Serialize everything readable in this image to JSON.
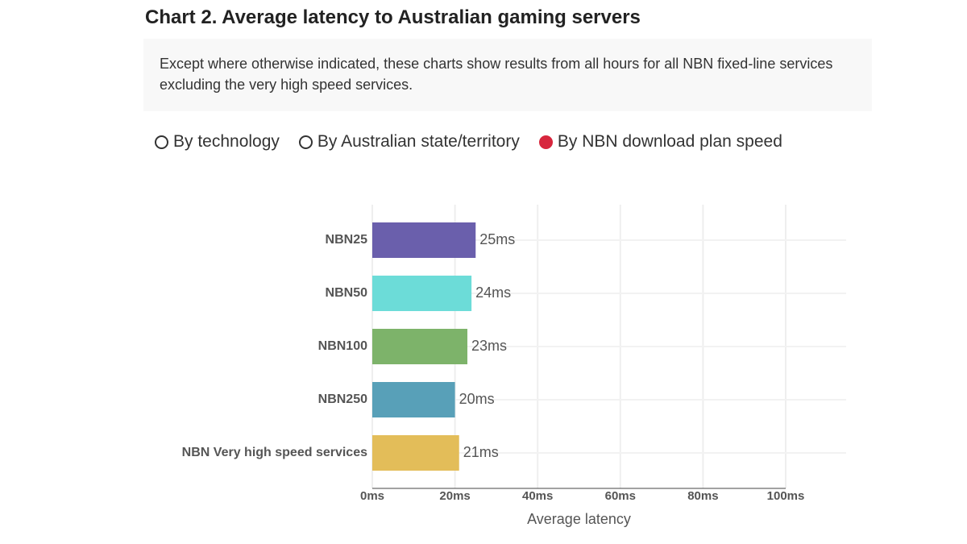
{
  "page": {
    "title": "Chart 2. Average latency to Australian gaming servers",
    "note": "Except where otherwise indicated, these charts show results from all hours for all NBN fixed-line services excluding the very high speed services.",
    "options": [
      "By technology",
      "By Australian state/territory",
      "By NBN download plan speed"
    ],
    "selected": 2
  },
  "chart_data": {
    "type": "bar",
    "orientation": "horizontal",
    "categories": [
      "NBN25",
      "NBN50",
      "NBN100",
      "NBN250",
      "NBN Very high speed services"
    ],
    "values": [
      25,
      24,
      23,
      20,
      21
    ],
    "value_labels": [
      "25ms",
      "24ms",
      "23ms",
      "20ms",
      "21ms"
    ],
    "colors": [
      "#6a5fac",
      "#6cdcd8",
      "#7db36a",
      "#58a0b8",
      "#e3bd59"
    ],
    "xlabel": "Average latency",
    "xlim": [
      0,
      100
    ],
    "xticks": [
      {
        "value": 0,
        "label": "0ms"
      },
      {
        "value": 20,
        "label": "20ms"
      },
      {
        "value": 40,
        "label": "40ms"
      },
      {
        "value": 60,
        "label": "60ms"
      },
      {
        "value": 80,
        "label": "80ms"
      },
      {
        "value": 100,
        "label": "100ms"
      }
    ],
    "grid": true
  }
}
